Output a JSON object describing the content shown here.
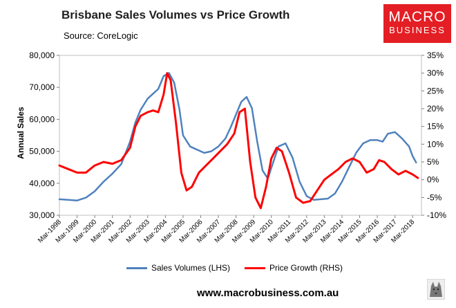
{
  "chart_data": {
    "type": "line",
    "title": "Brisbane Sales Volumes vs Price Growth",
    "subtitle": "Source: CoreLogic",
    "ylabel_left": "Annual Sales",
    "left_axis": {
      "min": 30000,
      "max": 80000,
      "ticks": [
        "30,000",
        "40,000",
        "50,000",
        "60,000",
        "70,000",
        "80,000"
      ]
    },
    "right_axis": {
      "min": -10,
      "max": 35,
      "ticks": [
        "-10%",
        "-5%",
        "0%",
        "5%",
        "10%",
        "15%",
        "20%",
        "25%",
        "30%",
        "35%"
      ]
    },
    "x_axis": {
      "start": 1998,
      "end": 2018.5,
      "ticks": [
        "Mar-1998",
        "Mar-1999",
        "Mar-2000",
        "Mar-2001",
        "Mar-2002",
        "Mar-2003",
        "Mar-2004",
        "Mar-2005",
        "Mar-2006",
        "Mar-2007",
        "Mar-2008",
        "Mar-2009",
        "Mar-2010",
        "Mar-2011",
        "Mar-2012",
        "Mar-2013",
        "Mar-2014",
        "Mar-2015",
        "Mar-2016",
        "Mar-2017",
        "Mar-2018"
      ]
    },
    "series": [
      {
        "name": "Sales Volumes (LHS)",
        "axis": "left",
        "color": "#4f81bd",
        "x": [
          1998.0,
          1998.5,
          1999.0,
          1999.5,
          2000.0,
          2000.5,
          2001.0,
          2001.5,
          2002.0,
          2002.3,
          2002.6,
          2003.0,
          2003.3,
          2003.6,
          2003.9,
          2004.2,
          2004.5,
          2004.8,
          2005.0,
          2005.4,
          2005.8,
          2006.2,
          2006.6,
          2007.0,
          2007.4,
          2007.7,
          2008.0,
          2008.3,
          2008.6,
          2008.9,
          2009.2,
          2009.5,
          2009.8,
          2010.1,
          2010.4,
          2010.8,
          2011.2,
          2011.6,
          2012.0,
          2012.4,
          2012.8,
          2013.2,
          2013.6,
          2014.0,
          2014.4,
          2014.8,
          2015.2,
          2015.6,
          2016.0,
          2016.3,
          2016.6,
          2017.0,
          2017.4,
          2017.8,
          2018.0,
          2018.2
        ],
        "values": [
          35000,
          34800,
          34600,
          35500,
          37500,
          40500,
          43000,
          46000,
          53000,
          59000,
          63000,
          66500,
          68000,
          69500,
          73500,
          74500,
          71500,
          63000,
          55000,
          51500,
          50500,
          49500,
          50000,
          51500,
          54000,
          57500,
          61500,
          65500,
          67000,
          63500,
          53000,
          44000,
          41500,
          46500,
          51500,
          52500,
          48000,
          40500,
          36000,
          34800,
          35000,
          35200,
          36800,
          40500,
          45000,
          49500,
          52500,
          53500,
          53500,
          53000,
          55500,
          56000,
          54000,
          51500,
          48500,
          46500
        ]
      },
      {
        "name": "Price Growth (RHS)",
        "axis": "right",
        "color": "#ff0000",
        "x": [
          1998.0,
          1998.5,
          1999.0,
          1999.5,
          2000.0,
          2000.5,
          2001.0,
          2001.5,
          2002.0,
          2002.3,
          2002.6,
          2003.0,
          2003.3,
          2003.6,
          2003.9,
          2004.1,
          2004.3,
          2004.6,
          2004.9,
          2005.2,
          2005.5,
          2005.9,
          2006.3,
          2006.7,
          2007.1,
          2007.5,
          2007.9,
          2008.2,
          2008.5,
          2008.8,
          2009.1,
          2009.4,
          2009.7,
          2010.0,
          2010.3,
          2010.6,
          2011.0,
          2011.4,
          2011.8,
          2012.2,
          2012.6,
          2013.0,
          2013.4,
          2013.8,
          2014.2,
          2014.6,
          2015.0,
          2015.4,
          2015.8,
          2016.1,
          2016.4,
          2016.8,
          2017.2,
          2017.6,
          2018.0,
          2018.3
        ],
        "values": [
          4,
          3,
          2,
          2,
          4,
          5,
          4.5,
          5.5,
          9,
          15,
          18,
          19,
          19.5,
          19,
          24,
          30,
          28,
          16,
          2,
          -3,
          -2,
          2,
          4,
          6,
          8,
          10,
          13,
          19,
          20,
          5,
          -5,
          -8,
          -2,
          6,
          9,
          8,
          2,
          -5,
          -6.5,
          -6,
          -3,
          0,
          1.5,
          3,
          5,
          6,
          5,
          2,
          3,
          5.5,
          5,
          3,
          1.5,
          2.5,
          1.5,
          0.5
        ]
      }
    ]
  },
  "footer": {
    "url": "www.macrobusiness.com.au"
  },
  "logo": {
    "line1": "MACRO",
    "line2": "BUSINESS",
    "color": "#e31e24"
  }
}
